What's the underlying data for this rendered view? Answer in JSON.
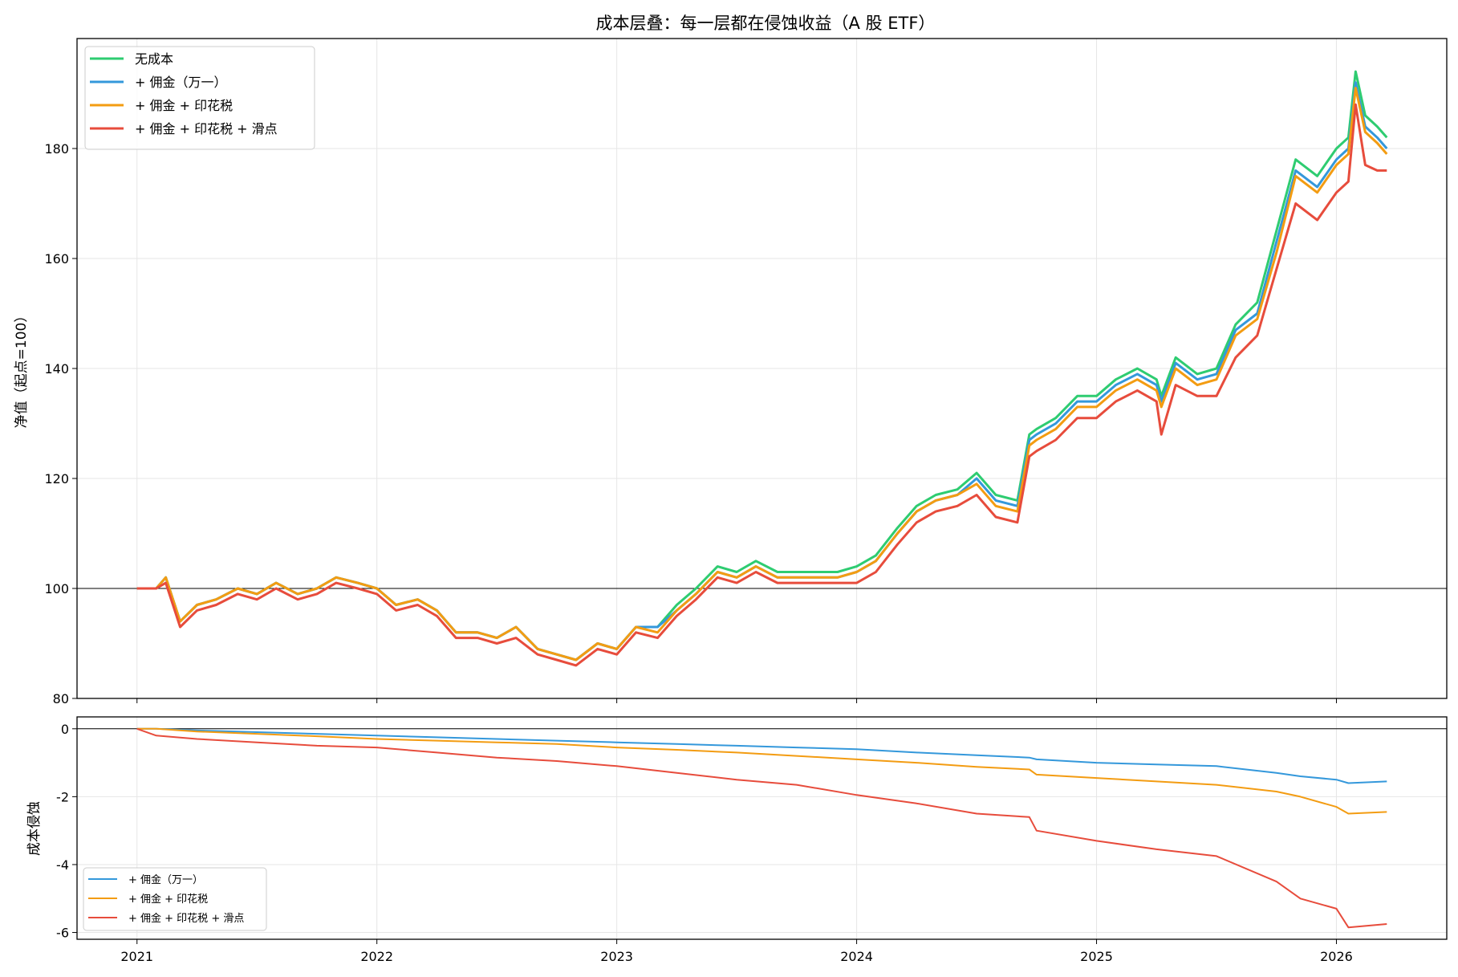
{
  "chart_data": [
    {
      "type": "line",
      "title": "成本层叠：每一层都在侵蚀收益（A 股 ETF）",
      "ylabel": "净值（起点=100）",
      "xlabel": "",
      "xlim": [
        2020.75,
        2026.46
      ],
      "ylim": [
        80,
        200
      ],
      "x_ticks": [
        "2021",
        "2022",
        "2023",
        "2024",
        "2025",
        "2026"
      ],
      "y_ticks": [
        80,
        100,
        120,
        140,
        160,
        180
      ],
      "reference_line": 100,
      "grid": true,
      "legend_position": "top-left",
      "x": [
        2021.0,
        2021.08,
        2021.12,
        2021.18,
        2021.25,
        2021.33,
        2021.42,
        2021.5,
        2021.58,
        2021.67,
        2021.75,
        2021.83,
        2021.92,
        2022.0,
        2022.08,
        2022.17,
        2022.25,
        2022.33,
        2022.42,
        2022.5,
        2022.58,
        2022.67,
        2022.75,
        2022.83,
        2022.92,
        2023.0,
        2023.08,
        2023.17,
        2023.25,
        2023.33,
        2023.42,
        2023.5,
        2023.58,
        2023.67,
        2023.75,
        2023.83,
        2023.92,
        2024.0,
        2024.08,
        2024.17,
        2024.25,
        2024.33,
        2024.42,
        2024.5,
        2024.58,
        2024.67,
        2024.72,
        2024.75,
        2024.83,
        2024.92,
        2025.0,
        2025.08,
        2025.17,
        2025.25,
        2025.27,
        2025.33,
        2025.42,
        2025.5,
        2025.58,
        2025.67,
        2025.75,
        2025.83,
        2025.92,
        2026.0,
        2026.05,
        2026.08,
        2026.12,
        2026.17,
        2026.21
      ],
      "series": [
        {
          "name": "无成本",
          "color": "#2ecc71",
          "values": [
            100,
            100,
            102,
            94,
            97,
            98,
            100,
            99,
            101,
            99,
            100,
            102,
            101,
            100,
            97,
            98,
            96,
            92,
            92,
            91,
            93,
            89,
            88,
            87,
            90,
            89,
            93,
            93,
            97,
            100,
            104,
            103,
            105,
            103,
            103,
            103,
            103,
            104,
            106,
            111,
            115,
            117,
            118,
            121,
            117,
            116,
            128,
            129,
            131,
            135,
            135,
            138,
            140,
            138,
            135,
            142,
            139,
            140,
            148,
            152,
            165,
            178,
            175,
            180,
            182,
            194,
            186,
            184,
            182
          ]
        },
        {
          "name": "+ 佣金（万一）",
          "color": "#3498db",
          "values": [
            100,
            100,
            102,
            94,
            97,
            98,
            100,
            99,
            101,
            99,
            100,
            102,
            101,
            100,
            97,
            98,
            96,
            92,
            92,
            91,
            93,
            89,
            88,
            87,
            90,
            89,
            93,
            93,
            96,
            99,
            103,
            102,
            104,
            102,
            102,
            102,
            102,
            103,
            105,
            110,
            114,
            116,
            117,
            120,
            116,
            115,
            127,
            128,
            130,
            134,
            134,
            137,
            139,
            137,
            134,
            141,
            138,
            139,
            147,
            150,
            163,
            176,
            173,
            178,
            180,
            192,
            184,
            182,
            180
          ]
        },
        {
          "name": "+ 佣金 + 印花税",
          "color": "#f39c12",
          "values": [
            100,
            100,
            102,
            94,
            97,
            98,
            100,
            99,
            101,
            99,
            100,
            102,
            101,
            100,
            97,
            98,
            96,
            92,
            92,
            91,
            93,
            89,
            88,
            87,
            90,
            89,
            93,
            92,
            96,
            99,
            103,
            102,
            104,
            102,
            102,
            102,
            102,
            103,
            105,
            110,
            114,
            116,
            117,
            119,
            115,
            114,
            126,
            127,
            129,
            133,
            133,
            136,
            138,
            136,
            133,
            140,
            137,
            138,
            146,
            149,
            161,
            175,
            172,
            177,
            179,
            191,
            183,
            181,
            179
          ]
        },
        {
          "name": "+ 佣金 + 印花税 + 滑点",
          "color": "#e74c3c",
          "values": [
            100,
            100,
            101,
            93,
            96,
            97,
            99,
            98,
            100,
            98,
            99,
            101,
            100,
            99,
            96,
            97,
            95,
            91,
            91,
            90,
            91,
            88,
            87,
            86,
            89,
            88,
            92,
            91,
            95,
            98,
            102,
            101,
            103,
            101,
            101,
            101,
            101,
            101,
            103,
            108,
            112,
            114,
            115,
            117,
            113,
            112,
            124,
            125,
            127,
            131,
            131,
            134,
            136,
            134,
            128,
            137,
            135,
            135,
            142,
            146,
            158,
            170,
            167,
            172,
            174,
            188,
            177,
            176,
            176
          ]
        }
      ]
    },
    {
      "type": "line",
      "title": "",
      "ylabel": "成本侵蚀",
      "xlabel": "",
      "xlim": [
        2020.75,
        2026.46
      ],
      "ylim": [
        -6.2,
        0.35
      ],
      "x_ticks": [
        "2021",
        "2022",
        "2023",
        "2024",
        "2025",
        "2026"
      ],
      "y_ticks": [
        "-6",
        "-4",
        "-2",
        "0"
      ],
      "reference_line": 0,
      "grid": true,
      "legend_position": "bottom-left",
      "x": [
        2021.0,
        2021.08,
        2021.25,
        2021.5,
        2021.75,
        2022.0,
        2022.25,
        2022.5,
        2022.75,
        2023.0,
        2023.25,
        2023.5,
        2023.75,
        2024.0,
        2024.25,
        2024.5,
        2024.72,
        2024.75,
        2025.0,
        2025.25,
        2025.5,
        2025.75,
        2025.85,
        2026.0,
        2026.05,
        2026.21
      ],
      "series": [
        {
          "name": "+ 佣金（万一）",
          "color": "#3498db",
          "values": [
            0,
            0,
            -0.05,
            -0.1,
            -0.15,
            -0.2,
            -0.25,
            -0.3,
            -0.35,
            -0.4,
            -0.45,
            -0.5,
            -0.55,
            -0.6,
            -0.7,
            -0.78,
            -0.85,
            -0.9,
            -1.0,
            -1.05,
            -1.1,
            -1.3,
            -1.4,
            -1.5,
            -1.6,
            -1.55
          ]
        },
        {
          "name": "+ 佣金 + 印花税",
          "color": "#f39c12",
          "values": [
            0,
            0,
            -0.08,
            -0.15,
            -0.22,
            -0.3,
            -0.35,
            -0.4,
            -0.45,
            -0.55,
            -0.62,
            -0.7,
            -0.8,
            -0.9,
            -1.0,
            -1.12,
            -1.2,
            -1.35,
            -1.45,
            -1.55,
            -1.65,
            -1.85,
            -2.0,
            -2.3,
            -2.5,
            -2.45
          ]
        },
        {
          "name": "+ 佣金 + 印花税 + 滑点",
          "color": "#e74c3c",
          "values": [
            0,
            -0.2,
            -0.3,
            -0.4,
            -0.5,
            -0.55,
            -0.7,
            -0.85,
            -0.95,
            -1.1,
            -1.3,
            -1.5,
            -1.65,
            -1.95,
            -2.2,
            -2.5,
            -2.6,
            -3.0,
            -3.3,
            -3.55,
            -3.75,
            -4.5,
            -5.0,
            -5.3,
            -5.85,
            -5.75
          ]
        }
      ]
    }
  ]
}
